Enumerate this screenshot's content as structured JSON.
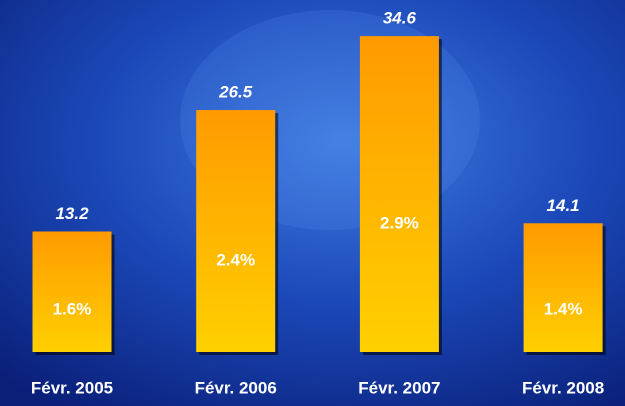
{
  "chart_data": {
    "type": "bar",
    "categories": [
      "Févr. 2005",
      "Févr. 2006",
      "Févr. 2007",
      "Févr. 2008"
    ],
    "values": [
      13.2,
      26.5,
      34.6,
      14.1
    ],
    "shares": [
      1.6,
      2.4,
      2.9,
      1.4
    ],
    "share_labels": [
      "1.6%",
      "2.4%",
      "2.9%",
      "1.4%"
    ],
    "color": "#ffaa00"
  }
}
